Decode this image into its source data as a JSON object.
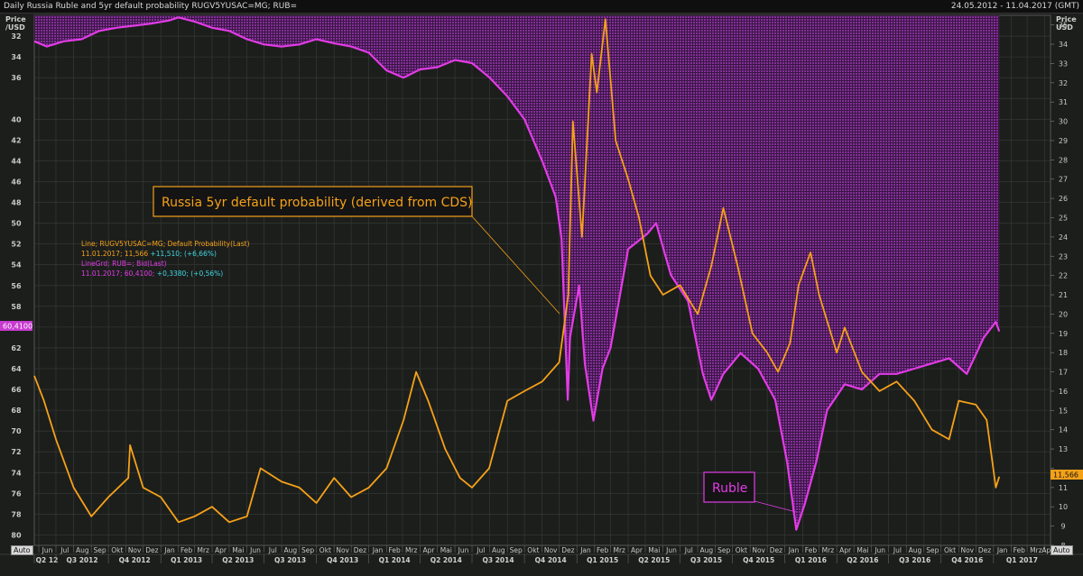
{
  "header": {
    "title": "Daily Russia Ruble and 5yr default probability RUGV5YUSAC=MG; RUB=",
    "date_range": "24.05.2012 - 11.04.2017 (GMT)"
  },
  "auto_label": "Auto",
  "legend": {
    "line1_name": "Line; RUGV5YUSAC=MG; Default Probability(Last)",
    "line1_value_a": "11.01.2017; 11,566",
    "line1_value_b": "+11,510; (+6,66%)",
    "line2_name": "LineGrd; RUB=; Bid(Last)",
    "line2_value_a": "11.01.2017; 60,4100;",
    "line2_value_b": "+0,3380; (+0,56%)"
  },
  "annotations": {
    "cds": "Russia 5yr default probability (derived from CDS)",
    "ruble": "Ruble"
  },
  "colors": {
    "background": "#1c1e1c",
    "cds_line": "#f5a118",
    "ruble_line": "#e23ce6",
    "ruble_fill": "#7a2a8c",
    "grid": "#3a3c3a"
  },
  "chart_data": {
    "type": "line",
    "title": "Daily Russia Ruble and 5yr default probability RUGV5YUSAC=MG; RUB=",
    "left_axis": {
      "label_line1": "Price",
      "label_line2": "/USD",
      "inverted": true,
      "range": [
        30,
        81
      ],
      "ticks": [
        32,
        34,
        36,
        38,
        40,
        42,
        44,
        46,
        48,
        50,
        52,
        54,
        56,
        58,
        60,
        62,
        64,
        66,
        68,
        70,
        72,
        74,
        76,
        78,
        80
      ],
      "tick_labels": [
        "32",
        "34",
        "36",
        "",
        "40",
        "42",
        "44",
        "46",
        "48",
        "50",
        "52",
        "54",
        "56",
        "58",
        "",
        "62",
        "64",
        "66",
        "68",
        "70",
        "72",
        "74",
        "76",
        "78",
        "80"
      ],
      "last_value_label": "60,4100"
    },
    "right_axis": {
      "label_line1": "Price",
      "label_line2": "USD",
      "range": [
        8,
        35.5
      ],
      "ticks": [
        8,
        9,
        10,
        11,
        12,
        13,
        14,
        15,
        16,
        17,
        18,
        19,
        20,
        21,
        22,
        23,
        24,
        25,
        26,
        27,
        28,
        29,
        30,
        31,
        32,
        33,
        34,
        35
      ],
      "tick_labels": [
        "8",
        "9",
        "10",
        "11",
        "",
        "13",
        "14",
        "15",
        "16",
        "17",
        "18",
        "19",
        "20",
        "21",
        "22",
        "23",
        "24",
        "25",
        "26",
        "27",
        "28",
        "29",
        "30",
        "31",
        "32",
        "33",
        "34",
        "35"
      ],
      "last_value_label": "11,566"
    },
    "x_axis": {
      "start": "2012-05-24",
      "end": "2017-04-11",
      "month_labels": [
        "Jun",
        "Jul",
        "Aug",
        "Sep",
        "Okt",
        "Nov",
        "Dez",
        "Jan",
        "Feb",
        "Mrz",
        "Apr",
        "Mai",
        "Jun",
        "Jul",
        "Aug",
        "Sep",
        "Okt",
        "Nov",
        "Dez",
        "Jan",
        "Feb",
        "Mrz",
        "Apr",
        "Mai",
        "Jun",
        "Jul",
        "Aug",
        "Sep",
        "Okt",
        "Nov",
        "Dez",
        "Jan",
        "Feb",
        "Mrz",
        "Apr",
        "Mai",
        "Jun",
        "Jul",
        "Aug",
        "Sep",
        "Okt",
        "Nov",
        "Dez",
        "Jan",
        "Feb",
        "Mrz",
        "Apr",
        "Mai",
        "Jun",
        "Jul",
        "Aug",
        "Sep",
        "Okt",
        "Nov",
        "Dez",
        "Jan",
        "Feb",
        "Mrz",
        "Apr"
      ],
      "quarter_labels": [
        "Q2 12",
        "Q3 2012",
        "Q4 2012",
        "Q1 2013",
        "Q2 2013",
        "Q3 2013",
        "Q4 2013",
        "Q1 2014",
        "Q2 2014",
        "Q3 2014",
        "Q4 2014",
        "Q1 2015",
        "Q2 2015",
        "Q3 2015",
        "Q4 2015",
        "Q1 2016",
        "Q2 2016",
        "Q3 2016",
        "Q4 2016",
        "Q1 2017"
      ]
    },
    "grid": true,
    "series": [
      {
        "name": "Line; RUGV5YUSAC=MG; Default Probability(Last)",
        "axis": "right",
        "x": [
          "2012-05-24",
          "2012-06-10",
          "2012-07-01",
          "2012-08-01",
          "2012-09-01",
          "2012-10-01",
          "2012-11-05",
          "2012-11-08",
          "2012-12-01",
          "2013-01-01",
          "2013-02-01",
          "2013-03-01",
          "2013-04-01",
          "2013-05-01",
          "2013-06-01",
          "2013-06-25",
          "2013-08-01",
          "2013-09-01",
          "2013-10-01",
          "2013-11-01",
          "2013-12-01",
          "2014-01-01",
          "2014-02-01",
          "2014-03-03",
          "2014-03-25",
          "2014-04-15",
          "2014-05-15",
          "2014-06-10",
          "2014-07-01",
          "2014-07-31",
          "2014-09-01",
          "2014-10-01",
          "2014-11-01",
          "2014-12-01",
          "2014-12-17",
          "2014-12-25",
          "2015-01-10",
          "2015-01-27",
          "2015-02-05",
          "2015-02-20",
          "2015-03-10",
          "2015-04-01",
          "2015-04-20",
          "2015-05-10",
          "2015-06-01",
          "2015-07-01",
          "2015-08-01",
          "2015-08-25",
          "2015-09-15",
          "2015-10-10",
          "2015-11-05",
          "2015-12-01",
          "2015-12-20",
          "2016-01-10",
          "2016-01-25",
          "2016-02-15",
          "2016-03-01",
          "2016-04-01",
          "2016-04-15",
          "2016-05-15",
          "2016-06-15",
          "2016-07-15",
          "2016-08-15",
          "2016-09-15",
          "2016-10-15",
          "2016-11-01",
          "2016-12-01",
          "2016-12-20",
          "2017-01-05",
          "2017-01-11"
        ],
        "values": [
          16.8,
          15.5,
          13.5,
          11.0,
          9.5,
          10.5,
          11.5,
          13.2,
          11.0,
          10.5,
          9.2,
          9.5,
          10.0,
          9.2,
          9.5,
          12.0,
          11.3,
          11.0,
          10.2,
          11.5,
          10.5,
          11.0,
          12.0,
          14.5,
          17.0,
          15.5,
          13.0,
          11.5,
          11.0,
          12.0,
          15.5,
          16.0,
          16.5,
          17.5,
          21.0,
          30.0,
          24.0,
          33.5,
          31.5,
          35.3,
          29.0,
          27.0,
          25.0,
          22.0,
          21.0,
          21.5,
          20.0,
          22.5,
          25.5,
          22.5,
          19.0,
          18.0,
          17.0,
          18.5,
          21.5,
          23.2,
          21.0,
          18.0,
          19.3,
          17.0,
          16.0,
          16.5,
          15.5,
          14.0,
          13.5,
          15.5,
          15.3,
          14.5,
          11.0,
          11.566
        ]
      },
      {
        "name": "LineGrd; RUB=; Bid(Last)",
        "axis": "left",
        "x": [
          "2012-05-24",
          "2012-06-15",
          "2012-07-15",
          "2012-08-15",
          "2012-09-15",
          "2012-10-15",
          "2012-11-15",
          "2012-12-15",
          "2013-01-15",
          "2013-02-01",
          "2013-03-01",
          "2013-04-01",
          "2013-05-01",
          "2013-06-01",
          "2013-07-01",
          "2013-08-01",
          "2013-09-01",
          "2013-10-01",
          "2013-11-01",
          "2013-12-01",
          "2014-01-01",
          "2014-02-01",
          "2014-03-03",
          "2014-04-01",
          "2014-05-01",
          "2014-06-01",
          "2014-07-01",
          "2014-08-01",
          "2014-09-01",
          "2014-10-01",
          "2014-11-01",
          "2014-11-25",
          "2014-12-05",
          "2014-12-16",
          "2014-12-20",
          "2015-01-05",
          "2015-01-15",
          "2015-01-30",
          "2015-02-15",
          "2015-03-01",
          "2015-04-01",
          "2015-05-05",
          "2015-05-20",
          "2015-06-15",
          "2015-07-15",
          "2015-08-10",
          "2015-08-25",
          "2015-09-15",
          "2015-10-15",
          "2015-11-15",
          "2015-12-15",
          "2016-01-05",
          "2016-01-21",
          "2016-02-05",
          "2016-02-25",
          "2016-03-15",
          "2016-04-15",
          "2016-05-15",
          "2016-06-15",
          "2016-07-15",
          "2016-08-15",
          "2016-09-15",
          "2016-10-15",
          "2016-11-15",
          "2016-12-15",
          "2017-01-05",
          "2017-01-11"
        ],
        "values": [
          32.5,
          33.0,
          32.5,
          32.3,
          31.5,
          31.2,
          31.0,
          30.8,
          30.5,
          30.2,
          30.6,
          31.2,
          31.5,
          32.3,
          32.8,
          33.0,
          32.8,
          32.3,
          32.7,
          33.0,
          33.6,
          35.3,
          36.0,
          35.2,
          35.0,
          34.3,
          34.6,
          36.0,
          37.8,
          40.0,
          44.0,
          47.5,
          51.5,
          67.0,
          61.0,
          56.0,
          63.5,
          69.0,
          64.0,
          62.0,
          52.5,
          51.0,
          50.0,
          55.0,
          57.5,
          64.5,
          67.0,
          64.5,
          62.5,
          64.0,
          67.0,
          73.0,
          79.5,
          77.0,
          73.0,
          68.0,
          65.5,
          66.0,
          64.5,
          64.5,
          64.0,
          63.5,
          63.0,
          64.5,
          61.0,
          59.5,
          60.41
        ]
      }
    ]
  }
}
